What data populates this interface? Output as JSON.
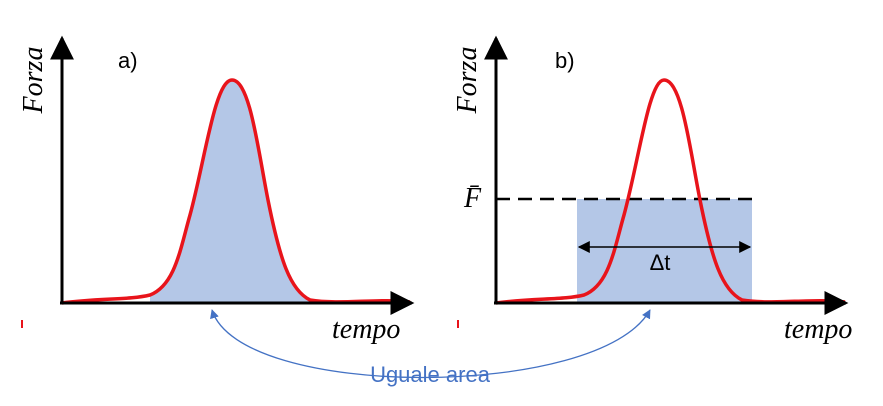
{
  "panels": [
    {
      "label": "a)",
      "y_axis": "Forza",
      "x_axis": "tempo"
    },
    {
      "label": "b)",
      "y_axis": "Forza",
      "x_axis": "tempo",
      "mean_force": "F̄",
      "interval": "Δt"
    }
  ],
  "connector": {
    "label": "Uguale area"
  }
}
